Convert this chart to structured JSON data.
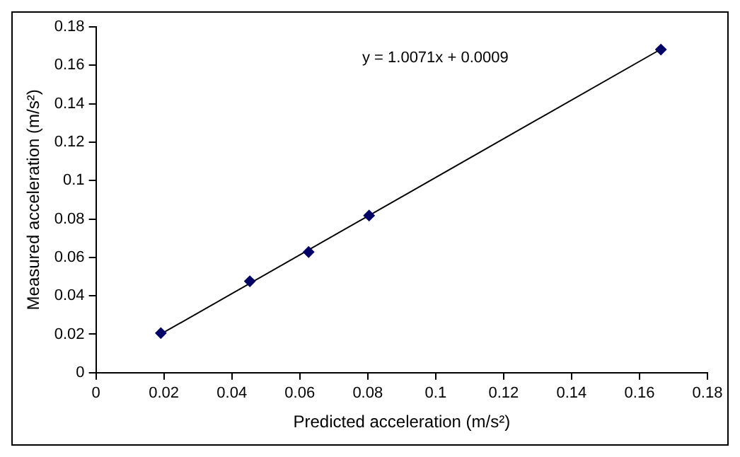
{
  "chart_data": {
    "type": "scatter",
    "xlabel": "Predicted acceleration (m/s²)",
    "ylabel": "Measured acceleration (m/s²)",
    "x": [
      0.0191,
      0.0453,
      0.0626,
      0.0804,
      0.1663
    ],
    "series": [
      {
        "color": "#000066",
        "marker": "diamond",
        "values": [
          0.0206,
          0.0476,
          0.0628,
          0.0818,
          0.1682
        ]
      },
      {
        "type": "line",
        "color": "#000000",
        "marker": "none",
        "x": [
          0.0191,
          0.1663
        ],
        "values": [
          0.0201,
          0.1684
        ]
      }
    ],
    "xlim": [
      0,
      0.18
    ],
    "xticks": [
      0,
      0.02,
      0.04,
      0.06,
      0.08,
      0.1,
      0.12,
      0.14,
      0.16,
      0.18
    ],
    "ylim": [
      0,
      0.18
    ],
    "yticks": [
      0,
      0.02,
      0.04,
      0.06,
      0.08,
      0.1,
      0.12,
      0.14,
      0.16,
      0.18
    ],
    "grid": false,
    "legend": false,
    "annotations": [
      "y = 1.0071x + 0.0009"
    ]
  }
}
